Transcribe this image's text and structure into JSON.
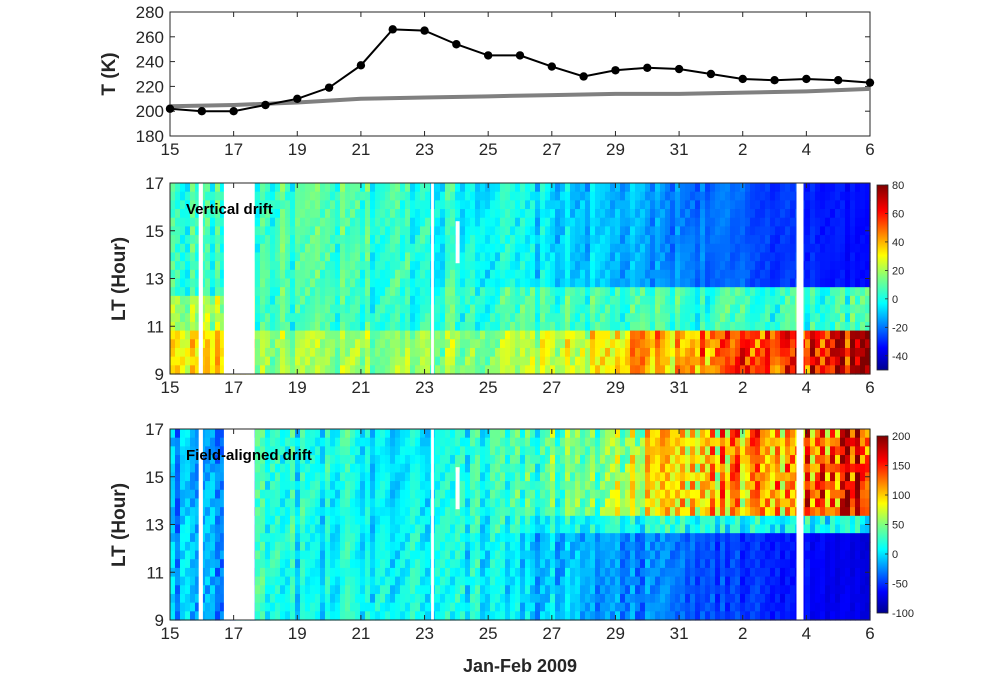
{
  "chart_data": [
    {
      "type": "line",
      "ylabel": "T (K)",
      "yticks": [
        "180",
        "200",
        "220",
        "240",
        "260",
        "280"
      ],
      "ylim": [
        180,
        280
      ],
      "xlim": [
        15,
        37
      ],
      "xtick_labels": [
        "15",
        "17",
        "19",
        "21",
        "23",
        "25",
        "27",
        "29",
        "31",
        "2",
        "4",
        "6"
      ],
      "series": [
        {
          "style": "black line with markers",
          "x": [
            15,
            16,
            17,
            18,
            19,
            20,
            21,
            22,
            23,
            24,
            25,
            26,
            27,
            28,
            29,
            30,
            31,
            32,
            33,
            34,
            35,
            36,
            37
          ],
          "values": [
            202,
            200,
            200,
            205,
            210,
            219,
            237,
            266,
            265,
            254,
            245,
            245,
            236,
            228,
            233,
            235,
            234,
            230,
            226,
            225,
            226,
            225,
            223
          ]
        },
        {
          "style": "gray thick line",
          "x": [
            15,
            17,
            19,
            21,
            23,
            25,
            27,
            29,
            31,
            33,
            35,
            37
          ],
          "values": [
            204,
            205,
            207,
            210,
            211,
            212,
            213,
            214,
            214,
            215,
            216,
            218
          ]
        }
      ],
      "colors": {
        "line1": "#000000",
        "line2": "#808080"
      }
    },
    {
      "type": "heatmap",
      "panel_label": "Vertical drift",
      "ylabel": "LT (Hour)",
      "yticks": [
        "9",
        "11",
        "13",
        "15",
        "17"
      ],
      "ylim": [
        9,
        17
      ],
      "xlim": [
        15,
        37
      ],
      "xtick_labels": [
        "15",
        "17",
        "19",
        "21",
        "23",
        "25",
        "27",
        "29",
        "31",
        "2",
        "4",
        "6"
      ],
      "colorbar_ticks": [
        "80",
        "60",
        "40",
        "20",
        "0",
        "-20",
        "-40"
      ],
      "colorbar_range": [
        -50,
        80
      ]
    },
    {
      "type": "heatmap",
      "panel_label": "Field-aligned drift",
      "ylabel": "LT (Hour)",
      "yticks": [
        "9",
        "11",
        "13",
        "15",
        "17"
      ],
      "ylim": [
        9,
        17
      ],
      "xlim": [
        15,
        37
      ],
      "xtick_labels": [
        "15",
        "17",
        "19",
        "21",
        "23",
        "25",
        "27",
        "29",
        "31",
        "2",
        "4",
        "6"
      ],
      "xlabel": "Jan-Feb 2009",
      "colorbar_ticks": [
        "200",
        "150",
        "100",
        "50",
        "0",
        "-50",
        "-100"
      ],
      "colorbar_range": [
        -100,
        200
      ]
    }
  ]
}
